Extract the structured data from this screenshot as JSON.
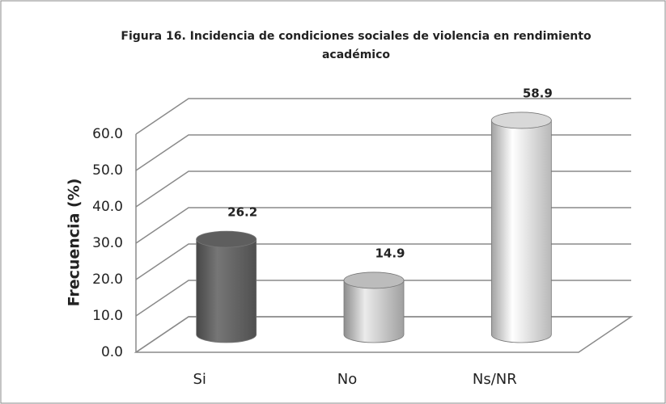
{
  "chart_data": {
    "type": "bar3d",
    "title": "Figura 16. Incidencia de condiciones sociales de violencia en rendimiento",
    "title_line2": "académico",
    "y_label": "Frecuencia (%)",
    "categories": [
      "Si",
      "No",
      "Ns/NR"
    ],
    "values": [
      26.2,
      14.9,
      58.9
    ],
    "colors": [
      "#5e5e5e",
      "#bcbcbc",
      "#d8d8d8"
    ],
    "ylim": [
      0,
      60
    ],
    "yticks": [
      {
        "value": 0,
        "label": "0.0"
      },
      {
        "value": 10,
        "label": "10.0"
      },
      {
        "value": 20,
        "label": "20.0"
      },
      {
        "value": 30,
        "label": "30.0"
      },
      {
        "value": 40,
        "label": "40.0"
      },
      {
        "value": 50,
        "label": "50.0"
      },
      {
        "value": 60,
        "label": "60.0"
      }
    ],
    "grid": true
  }
}
